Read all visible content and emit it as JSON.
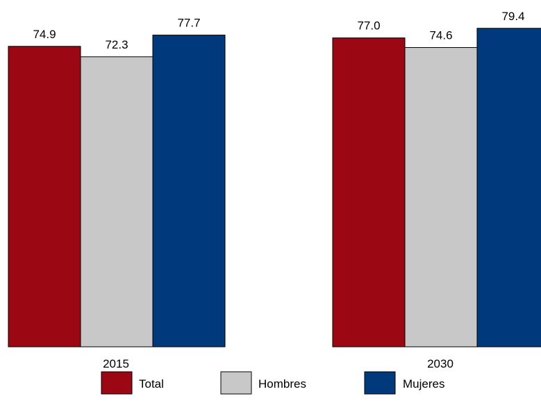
{
  "chart_data": {
    "type": "bar",
    "title": "",
    "xlabel": "",
    "ylabel": "",
    "categories": [
      "2015",
      "2030"
    ],
    "series": [
      {
        "name": "Total",
        "values": [
          74.9,
          77.0
        ],
        "color": "#9b0712"
      },
      {
        "name": "Hombres",
        "values": [
          72.3,
          74.6
        ],
        "color": "#c8c8c8"
      },
      {
        "name": "Mujeres",
        "values": [
          77.7,
          79.4
        ],
        "color": "#003a7c"
      }
    ],
    "value_labels": [
      [
        "74.9",
        "77.0"
      ],
      [
        "72.3",
        "74.6"
      ],
      [
        "77.7",
        "79.4"
      ]
    ],
    "ylim": [
      0,
      80
    ],
    "grid": false,
    "legend_position": "bottom"
  }
}
